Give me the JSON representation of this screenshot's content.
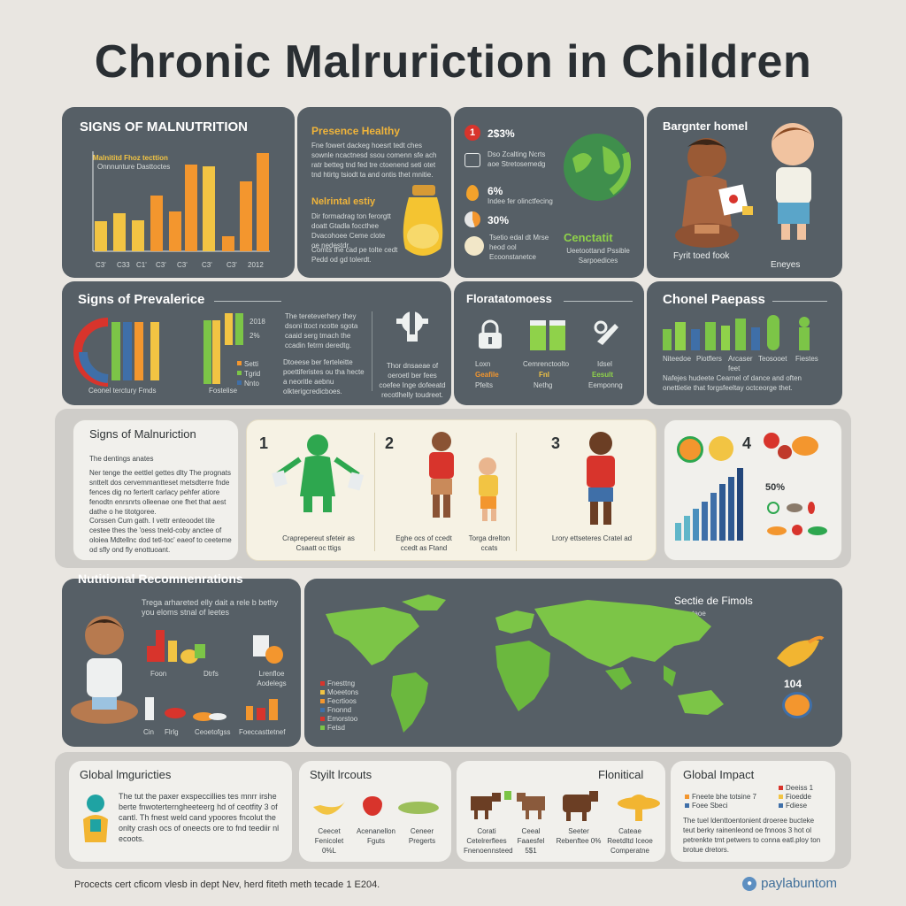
{
  "title": "Chronic Malruriction in Children",
  "row1": {
    "p1": {
      "heading": "SIGNS OF MALNUTRITION",
      "chart_label": "Malnititd Fhoz tecttion",
      "chart_sub": "Onnnunture Dasttoctes",
      "ticks": [
        "C3'",
        "C33",
        "C1'",
        "C3'",
        "C3'",
        "C3'",
        "C3'",
        "2012"
      ]
    },
    "p2": {
      "heading": "Presence Healthy",
      "text": "Fne fowert dackeg hoesrt tedt ches sownle ncactnesd ssou comenn sfe ach ratr betteg tnd fed tre ctoenend seti otet tnd htirtg tsiodt ta and ontis thet mnitie.",
      "sub": "Nelrintal estiy",
      "sub_text": "Dir formadrag ton ferorgtt doatt Gtadla foccthee Dvacohoee Ceme clote oe nedestdr.",
      "sub_text2": "Comts the cad pe tolte cedt Pedd od gd tolerdt."
    },
    "p3": {
      "stat1": "2$3%",
      "stat1_text": "Dso Zcalting Ncrts aoe Stretosemedg",
      "stat2": "6%",
      "stat2_text": "Indee fer olinctfecing",
      "stat3": "30%",
      "stat4_text": "Tsetio edal dt Mrse heod ool Ecoonstanetce",
      "globe_title": "Cenctatit",
      "globe_sub": "Ueetoottand Pssible Sarpoedices"
    },
    "p4": {
      "heading": "Bargnter homel",
      "caption1": "Fyrit toed fook",
      "caption2": "Eneyes"
    }
  },
  "row2": {
    "p1": {
      "heading": "Signs of Prevalerice",
      "legend": [
        "2018",
        "2%"
      ],
      "legend_small": [
        "Setti",
        "Tgrid",
        "Nnto"
      ],
      "cap1": "Ceonel terctury Fmds",
      "cap2": "Fostelise",
      "text1": "The tereteverhery they dsoni ttoct ncotte sgota caaid serg tmach the ccadin fetrm deredtg.",
      "text2": "Dtoeese ber ferteleitte poettiferistes ou tha hecte a neoritle aebnu olkterigcredicboes.",
      "text3": "Thor dnsaeae of oeroetl ber fees coefee Inge dofeeatd recotlhelly toudreet."
    },
    "p2": {
      "heading": "Floratatomoess",
      "c1": "Loxn",
      "c1b": "Geafile",
      "c1c": "Pfelts",
      "c2": "Cemrenctoolto",
      "c2b": "Fnl",
      "c2c": "Nethg",
      "c3": "Idsel",
      "c3b": "Eesult",
      "c3c": "Eemponng"
    },
    "p3": {
      "heading": "Chonel Paepass",
      "labels": [
        "Niteedoe",
        "Piotflers",
        "Arcaser feet",
        "Teosooet",
        "Fiestes"
      ],
      "text": "Nafejes hudeete Cearnel of dance and often onettietie that forgsfeeltay octceorge thet."
    }
  },
  "row3": {
    "p1": {
      "heading": "Signs of Malnuriction",
      "sub": "The dentings anates",
      "text1": "Ner tenge the eettlel gettes dlty The prognats snttelt dos cervemmantteset metsdterre fnde fences dig no ferterlt carlacy pehfer atiore fenodtn enrsnrts olleenae one fhet that aest dathe o he titotgoree.",
      "text2": "Corssen Cum gath. I vettr enteoodet tite cestee thes the 'oess tneld-coby anctee of oloiea Mdtellnc dod tetl-toc' eaeof to ceeteme od sfly ond fly enottuoant."
    },
    "p2": {
      "n1": "1",
      "n2": "2",
      "n3": "3",
      "cap1": "Craprepereut sfeteir as",
      "cap1b": "Csaatt oc ttigs",
      "cap2": "Eghe ocs of ccedt ccedt as Ftand",
      "cap3": "Torga drelton ccats",
      "cap4": "Lrory ettseteres Cratel ad"
    },
    "p3": {
      "n4": "4",
      "stat": "50%"
    }
  },
  "row4": {
    "p1": {
      "heading": "Nutitional Recomnenrations",
      "text": "Trega arhareted elly dait a rele b bethy you eloms stnal of leetes",
      "items": [
        "Foon",
        "Dtrfs",
        "Lrenfloe Aodelegs",
        "Cin",
        "Flrlg",
        "Ceoetofgss",
        "Foeccasttetnef"
      ]
    },
    "p2": {
      "heading": "Sectie de Fimols",
      "sub": "Pacetaoe",
      "legend": [
        "Fnesttng",
        "Moeetons",
        "Fecrtioos",
        "Fnonnd",
        "Emorstoo",
        "Fetsd"
      ],
      "stat": "104"
    }
  },
  "row5": {
    "p1": {
      "heading": "Global lmguricties",
      "text": "The tut the paxer exspeccillies tes mnrr irshe berte fnwoterterngheeteerg hd of ceotfity 3 of cantl. Th fnest weld cand ypoores fncolut the onlty crash ocs of oneects ore to fnd teediir nl ecoots."
    },
    "p2": {
      "heading": "Styilt lrcouts",
      "caps": [
        "Ceecet Fenicolet 0%L",
        "Acenanellon Fguts",
        "Ceneer Pregerts"
      ]
    },
    "p3": {
      "heading": "Flonitical",
      "caps": [
        "Corati Cetelrerflees Fnenoennsteed",
        "Ceeal Faaesfel 5$1",
        "Seeter Rebenftee 0%",
        "Cateae Reetdltd Iceoe Comperatne"
      ]
    },
    "p4": {
      "heading": "Global Impact",
      "legend": [
        "Fneete bhe totsine 7",
        "Foee Sbeci"
      ],
      "legend2": [
        "Deeiss 1",
        "Fioedde",
        "Fdiese"
      ],
      "text": "The tuel ldenttoentonient droeree bucteke teut berky rainenleond oe fnnoos 3 hot ol petrenkte tmt petwers to conna eatl.ploy ton brotue dretors."
    }
  },
  "footer": "Procects cert cficom vlesb in dept Nev, herd fiteth meth tecade 1 E204.",
  "brand": "paylabuntom",
  "colors": {
    "bar_gold": "#f2c443",
    "bar_orange": "#f3962e",
    "green": "#7cc547",
    "blue": "#3f6fa8",
    "dark_panel": "#565f66"
  }
}
